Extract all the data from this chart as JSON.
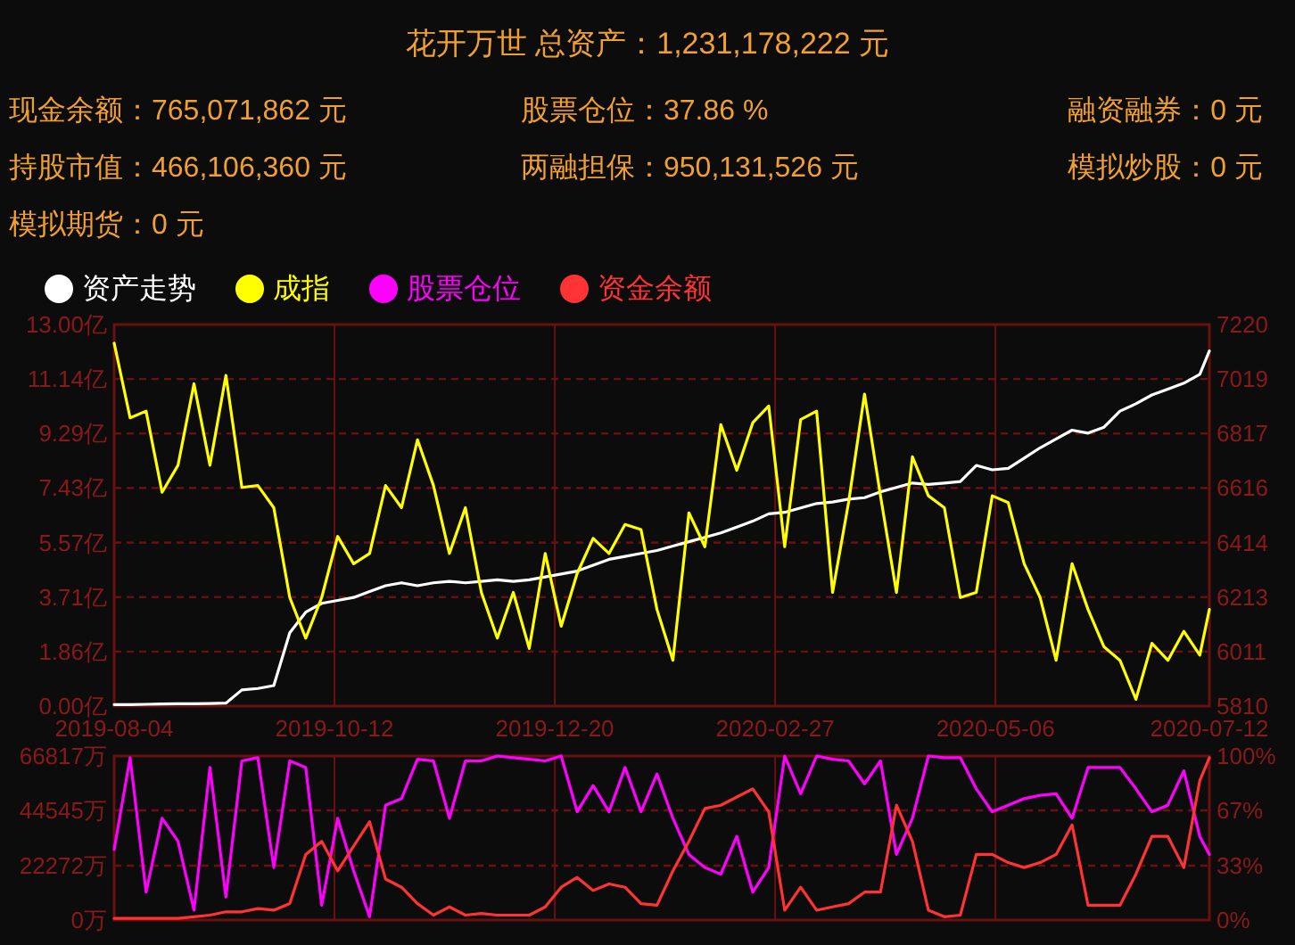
{
  "chart_data": [
    {
      "type": "line",
      "title": "花开万世 总资产：1,231,178,222 元",
      "annotations": [
        "现金余额：765,071,862 元",
        "股票仓位：37.86 %",
        "融资融券：0 元",
        "持股市值：466,106,360 元",
        "两融担保：950,131,526 元",
        "模拟炒股：0 元",
        "模拟期货：0 元"
      ],
      "x": [
        "2019-08-04",
        "2019-08-09",
        "2019-08-14",
        "2019-08-19",
        "2019-08-24",
        "2019-08-29",
        "2019-09-03",
        "2019-09-08",
        "2019-09-13",
        "2019-09-18",
        "2019-09-23",
        "2019-09-28",
        "2019-10-03",
        "2019-10-08",
        "2019-10-13",
        "2019-10-18",
        "2019-10-23",
        "2019-10-28",
        "2019-11-02",
        "2019-11-07",
        "2019-11-12",
        "2019-11-17",
        "2019-11-22",
        "2019-11-27",
        "2019-12-02",
        "2019-12-07",
        "2019-12-12",
        "2019-12-17",
        "2019-12-22",
        "2019-12-27",
        "2020-01-01",
        "2020-01-06",
        "2020-01-11",
        "2020-01-16",
        "2020-01-21",
        "2020-01-26",
        "2020-01-31",
        "2020-02-05",
        "2020-02-10",
        "2020-02-15",
        "2020-02-20",
        "2020-02-25",
        "2020-03-01",
        "2020-03-06",
        "2020-03-11",
        "2020-03-16",
        "2020-03-21",
        "2020-03-26",
        "2020-03-31",
        "2020-04-05",
        "2020-04-10",
        "2020-04-15",
        "2020-04-20",
        "2020-04-25",
        "2020-04-30",
        "2020-05-05",
        "2020-05-10",
        "2020-05-15",
        "2020-05-20",
        "2020-05-25",
        "2020-05-30",
        "2020-06-04",
        "2020-06-09",
        "2020-06-14",
        "2020-06-19",
        "2020-06-24",
        "2020-06-29",
        "2020-07-04",
        "2020-07-09",
        "2020-07-12"
      ],
      "series": [
        {
          "name": "资产走势",
          "color": "#ffffff",
          "values": [
            0.05,
            0.05,
            0.06,
            0.07,
            0.08,
            0.08,
            0.09,
            0.1,
            0.55,
            0.6,
            0.7,
            2.5,
            3.2,
            3.5,
            3.6,
            3.7,
            3.9,
            4.1,
            4.2,
            4.1,
            4.2,
            4.25,
            4.2,
            4.25,
            4.3,
            4.25,
            4.3,
            4.4,
            4.5,
            4.6,
            4.8,
            5.0,
            5.1,
            5.2,
            5.3,
            5.45,
            5.6,
            5.75,
            5.9,
            6.1,
            6.3,
            6.55,
            6.6,
            6.75,
            6.9,
            6.95,
            7.05,
            7.1,
            7.3,
            7.45,
            7.6,
            7.55,
            7.6,
            7.65,
            8.2,
            8.05,
            8.1,
            8.45,
            8.8,
            9.1,
            9.4,
            9.3,
            9.5,
            10.05,
            10.3,
            10.6,
            10.8,
            11.0,
            11.3,
            12.1
          ]
        },
        {
          "name": "成指",
          "color": "#ffff00",
          "axis": "y2",
          "values": [
            7151,
            6875,
            6900,
            6600,
            6700,
            7001,
            6700,
            7032,
            6618,
            6625,
            6543,
            6211,
            6061,
            6211,
            6437,
            6336,
            6374,
            6625,
            6543,
            6794,
            6625,
            6374,
            6543,
            6230,
            6061,
            6230,
            6023,
            6374,
            6105,
            6300,
            6430,
            6374,
            6481,
            6462,
            6167,
            5979,
            6524,
            6399,
            6850,
            6681,
            6857,
            6919,
            6399,
            6869,
            6900,
            6230,
            6562,
            6963,
            6587,
            6230,
            6731,
            6587,
            6543,
            6211,
            6230,
            6587,
            6562,
            6336,
            6211,
            5979,
            6336,
            6167,
            6029,
            5979,
            5835,
            6042,
            5979,
            6086,
            5998,
            6167
          ]
        }
      ],
      "xlim": [
        "2019-08-04",
        "2020-07-12"
      ],
      "xticks": [
        "2019-08-04",
        "2019-10-12",
        "2019-12-20",
        "2020-02-27",
        "2020-05-06",
        "2020-07-12"
      ],
      "ylim": [
        0,
        13
      ],
      "yticks": [
        {
          "value": 0,
          "label": "0.00亿"
        },
        {
          "value": 1.86,
          "label": "1.86亿"
        },
        {
          "value": 3.71,
          "label": "3.71亿"
        },
        {
          "value": 5.57,
          "label": "5.57亿"
        },
        {
          "value": 7.43,
          "label": "7.43亿"
        },
        {
          "value": 9.29,
          "label": "9.29亿"
        },
        {
          "value": 11.14,
          "label": "11.14亿"
        },
        {
          "value": 13,
          "label": "13.00亿"
        }
      ],
      "y2lim": [
        5810,
        7220
      ],
      "y2ticks": [
        5810,
        6011,
        6213,
        6414,
        6616,
        6817,
        7019,
        7220
      ],
      "grid": true,
      "legend": "top left"
    },
    {
      "type": "line",
      "x": [
        "2019-08-04",
        "2019-08-09",
        "2019-08-14",
        "2019-08-19",
        "2019-08-24",
        "2019-08-29",
        "2019-09-03",
        "2019-09-08",
        "2019-09-13",
        "2019-09-18",
        "2019-09-23",
        "2019-09-28",
        "2019-10-03",
        "2019-10-08",
        "2019-10-13",
        "2019-10-18",
        "2019-10-23",
        "2019-10-28",
        "2019-11-02",
        "2019-11-07",
        "2019-11-12",
        "2019-11-17",
        "2019-11-22",
        "2019-11-27",
        "2019-12-02",
        "2019-12-07",
        "2019-12-12",
        "2019-12-17",
        "2019-12-22",
        "2019-12-27",
        "2020-01-01",
        "2020-01-06",
        "2020-01-11",
        "2020-01-16",
        "2020-01-21",
        "2020-01-26",
        "2020-01-31",
        "2020-02-05",
        "2020-02-10",
        "2020-02-15",
        "2020-02-20",
        "2020-02-25",
        "2020-03-01",
        "2020-03-06",
        "2020-03-11",
        "2020-03-16",
        "2020-03-21",
        "2020-03-26",
        "2020-03-31",
        "2020-04-05",
        "2020-04-10",
        "2020-04-15",
        "2020-04-20",
        "2020-04-25",
        "2020-04-30",
        "2020-05-05",
        "2020-05-10",
        "2020-05-15",
        "2020-05-20",
        "2020-05-25",
        "2020-05-30",
        "2020-06-04",
        "2020-06-09",
        "2020-06-14",
        "2020-06-19",
        "2020-06-24",
        "2020-06-29",
        "2020-07-04",
        "2020-07-09",
        "2020-07-12"
      ],
      "series": [
        {
          "name": "股票仓位",
          "color": "#ff00ff",
          "axis": "y2",
          "values": [
            43,
            99,
            17,
            62,
            48,
            6,
            93,
            14,
            97,
            99,
            32,
            97,
            93,
            9,
            62,
            30,
            2,
            70,
            74,
            98,
            97,
            62,
            97,
            97,
            100,
            99,
            98,
            97,
            100,
            66,
            82,
            66,
            93,
            66,
            89,
            62,
            40,
            32,
            28,
            51,
            17,
            32,
            100,
            77,
            100,
            98,
            97,
            83,
            97,
            40,
            62,
            100,
            99,
            99,
            80,
            66,
            70,
            74,
            76,
            77,
            62,
            93,
            93,
            93,
            80,
            66,
            70,
            91,
            51,
            40
          ]
        },
        {
          "name": "资金余额",
          "color": "#ff3333",
          "values": [
            670,
            670,
            670,
            670,
            670,
            1340,
            2000,
            3340,
            3340,
            4680,
            4010,
            6680,
            26730,
            32070,
            20050,
            30070,
            40090,
            16700,
            13360,
            6680,
            2000,
            5350,
            2000,
            2670,
            2000,
            2000,
            2000,
            5350,
            13360,
            17370,
            12030,
            14700,
            13360,
            6680,
            6010,
            20050,
            32070,
            45440,
            46770,
            50110,
            53450,
            44100,
            4010,
            13360,
            4010,
            5350,
            6680,
            11360,
            11360,
            46770,
            32070,
            4010,
            1340,
            2000,
            26730,
            26730,
            23390,
            21380,
            23390,
            26730,
            38750,
            6010,
            6010,
            6010,
            18710,
            34080,
            34080,
            21380,
            56800,
            66150
          ]
        }
      ],
      "xlim": [
        "2019-08-04",
        "2020-07-12"
      ],
      "xticks": [
        "2019-08-04",
        "2019-10-12",
        "2019-12-20",
        "2020-02-27",
        "2020-05-06",
        "2020-07-12"
      ],
      "ylim": [
        0,
        66817
      ],
      "yticks": [
        {
          "value": 0,
          "label": "0万"
        },
        {
          "value": 22272,
          "label": "22272万"
        },
        {
          "value": 44545,
          "label": "44545万"
        },
        {
          "value": 66817,
          "label": "66817万"
        }
      ],
      "y2lim": [
        0,
        100
      ],
      "y2ticks": [
        {
          "value": 0,
          "label": "0%"
        },
        {
          "value": 33,
          "label": "33%"
        },
        {
          "value": 67,
          "label": "67%"
        },
        {
          "value": 100,
          "label": "100%"
        }
      ],
      "grid": true,
      "legend": "top left",
      "tick_labels": "y"
    }
  ]
}
